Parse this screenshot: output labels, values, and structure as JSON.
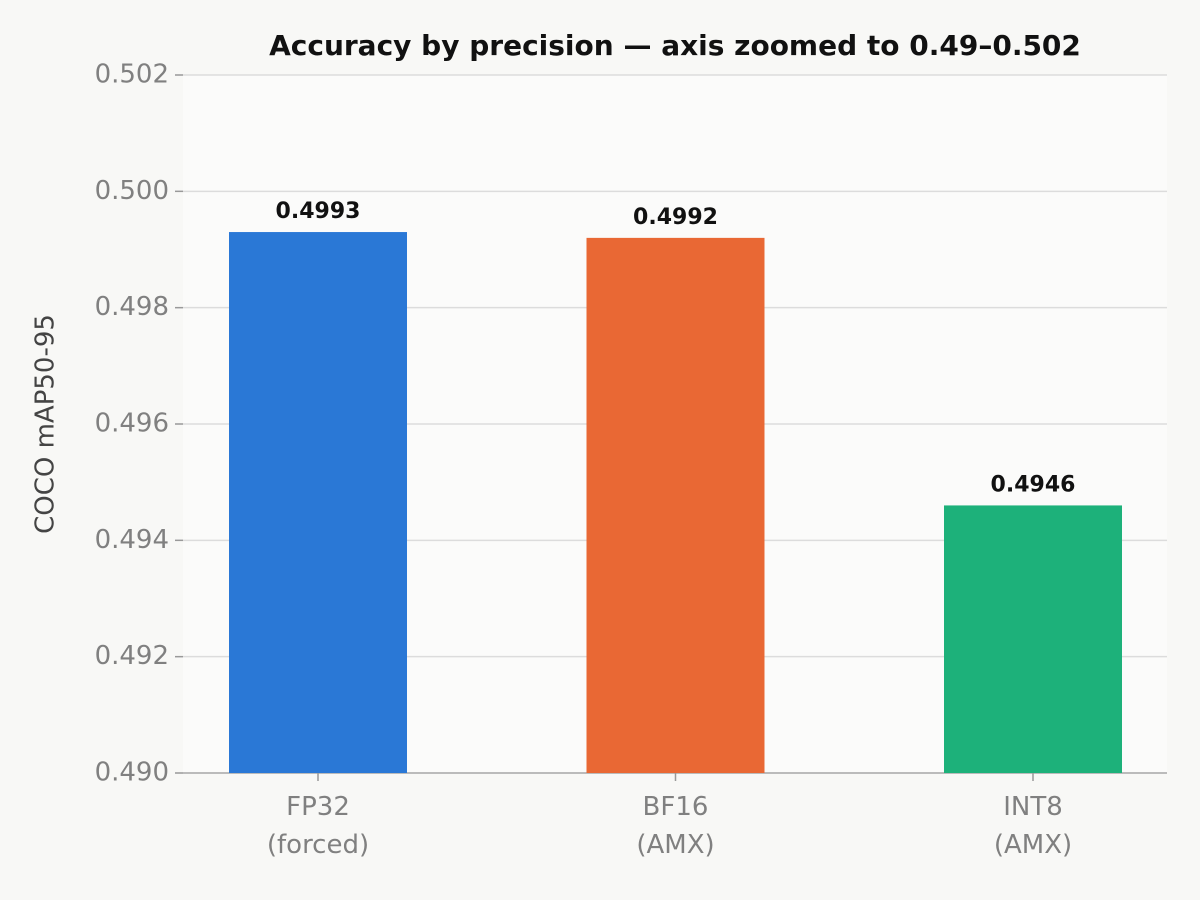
{
  "chart_data": {
    "type": "bar",
    "title": "Accuracy by precision — axis zoomed to 0.49–0.502",
    "y_label": "COCO mAP50-95",
    "categories": [
      "FP32\n(forced)",
      "BF16\n(AMX)",
      "INT8\n(AMX)"
    ],
    "values": [
      0.4993,
      0.4992,
      0.4946
    ],
    "colors": [
      "#2a78d6",
      "#e96834",
      "#1db17a"
    ],
    "ylim": [
      0.49,
      0.502
    ],
    "yticks": [
      {
        "value": 0.49,
        "label": "0.490"
      },
      0.492,
      0.494,
      0.496,
      0.498,
      {
        "value": 0.5,
        "label": "0.500"
      },
      0.502
    ],
    "grid": true
  }
}
